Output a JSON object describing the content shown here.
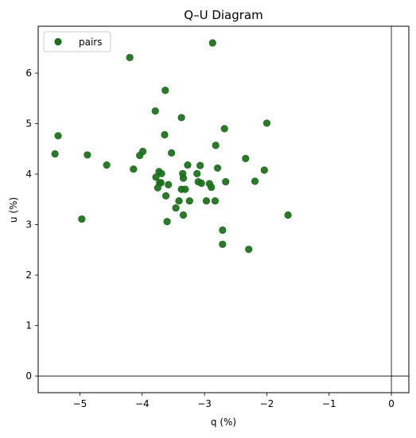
{
  "chart_data": {
    "type": "scatter",
    "title": "Q–U Diagram",
    "xlabel": "q (%)",
    "ylabel": "u (%)",
    "xlim": [
      -5.67,
      0.28
    ],
    "ylim": [
      -0.33,
      6.93
    ],
    "xticks": [
      -5,
      -4,
      -3,
      -2,
      -1,
      0
    ],
    "yticks": [
      0,
      1,
      2,
      3,
      4,
      5,
      6
    ],
    "grid": false,
    "zero_lines": true,
    "legend": {
      "position": "top-left",
      "entries": [
        "pairs"
      ]
    },
    "series": [
      {
        "name": "pairs",
        "color": "#1a6e1a",
        "points": [
          [
            -5.4,
            4.4
          ],
          [
            -5.35,
            4.76
          ],
          [
            -4.97,
            3.11
          ],
          [
            -4.88,
            4.38
          ],
          [
            -4.57,
            4.18
          ],
          [
            -4.2,
            6.31
          ],
          [
            -4.14,
            4.1
          ],
          [
            -4.04,
            4.37
          ],
          [
            -3.99,
            4.45
          ],
          [
            -3.79,
            5.25
          ],
          [
            -3.78,
            3.94
          ],
          [
            -3.75,
            3.73
          ],
          [
            -3.73,
            4.05
          ],
          [
            -3.72,
            3.83
          ],
          [
            -3.69,
            4.01
          ],
          [
            -3.7,
            3.83
          ],
          [
            -3.64,
            4.78
          ],
          [
            -3.63,
            5.66
          ],
          [
            -3.62,
            3.57
          ],
          [
            -3.6,
            3.06
          ],
          [
            -3.58,
            3.79
          ],
          [
            -3.53,
            4.42
          ],
          [
            -3.46,
            3.33
          ],
          [
            -3.41,
            3.47
          ],
          [
            -3.37,
            5.12
          ],
          [
            -3.37,
            3.7
          ],
          [
            -3.35,
            4.01
          ],
          [
            -3.34,
            3.92
          ],
          [
            -3.34,
            3.19
          ],
          [
            -3.31,
            3.7
          ],
          [
            -3.27,
            4.18
          ],
          [
            -3.24,
            3.47
          ],
          [
            -3.12,
            4.01
          ],
          [
            -3.1,
            3.85
          ],
          [
            -3.07,
            4.17
          ],
          [
            -3.05,
            3.82
          ],
          [
            -2.97,
            3.47
          ],
          [
            -2.92,
            3.81
          ],
          [
            -2.89,
            3.74
          ],
          [
            -2.87,
            6.6
          ],
          [
            -2.83,
            3.47
          ],
          [
            -2.82,
            4.57
          ],
          [
            -2.79,
            4.12
          ],
          [
            -2.71,
            2.89
          ],
          [
            -2.71,
            2.61
          ],
          [
            -2.68,
            4.9
          ],
          [
            -2.66,
            3.85
          ],
          [
            -2.34,
            4.31
          ],
          [
            -2.29,
            2.51
          ],
          [
            -2.19,
            3.86
          ],
          [
            -2.04,
            4.08
          ],
          [
            -2.0,
            5.01
          ],
          [
            -1.66,
            3.19
          ]
        ]
      }
    ]
  }
}
